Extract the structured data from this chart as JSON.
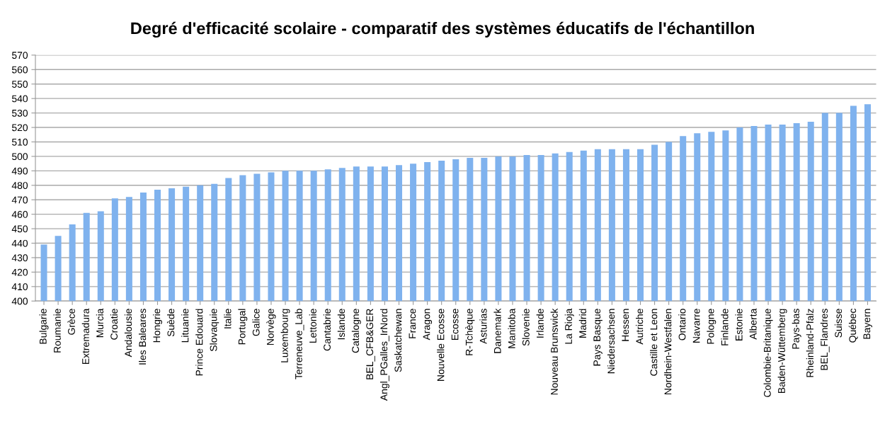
{
  "chart_data": {
    "type": "bar",
    "title": "Degré d'efficacité scolaire - comparatif des systèmes éducatifs de l'échantillon",
    "categories": [
      "Bulgarie",
      "Roumanie",
      "Grèce",
      "Extremadura",
      "Murcia",
      "Croatie",
      "Andalousie",
      "Iles Baleares",
      "Hongrie",
      "Suède",
      "Lituanie",
      "Prince Edouard",
      "Slovaquie",
      "Italie",
      "Portugal",
      "Galice",
      "Norvège",
      "Luxembourg",
      "Terreneuve_Lab",
      "Lettonie",
      "Cantabrie",
      "Islande",
      "Catalogne",
      "BEL_CFB&GER",
      "Angl_PGalles_IrNord",
      "Saskatchewan",
      "France",
      "Aragon",
      "Nouvelle Ecosse",
      "Ecosse",
      "R-Tchèque",
      "Asturias",
      "Danemark",
      "Manitoba",
      "Slovenie",
      "Irlande",
      "Nouveau Brunswick",
      "La Rioja",
      "Madrid",
      "Pays Basque",
      "Niedersachsen",
      "Hessen",
      "Autriche",
      "Castille et Leon",
      "Nordhein-Westfalen",
      "Ontario",
      "Navarre",
      "Pologne",
      "Finlande",
      "Estonie",
      "Alberta",
      "Colombie-Britanique",
      "Baden-Wüttemberg",
      "Pays-bas",
      "Rheinland-Pfalz",
      "BEL_Flandres",
      "Suisse",
      "Québec",
      "Bayern"
    ],
    "values": [
      439,
      445,
      453,
      461,
      462,
      471,
      472,
      475,
      477,
      478,
      479,
      480,
      481,
      485,
      487,
      488,
      489,
      490,
      490,
      490,
      491,
      492,
      493,
      493,
      493,
      494,
      495,
      496,
      497,
      498,
      499,
      499,
      500,
      500,
      501,
      501,
      502,
      503,
      504,
      505,
      505,
      505,
      505,
      508,
      510,
      514,
      516,
      517,
      518,
      520,
      521,
      522,
      522,
      523,
      524,
      530,
      530,
      535,
      536
    ],
    "color": "#7fb2ee",
    "ylim": [
      400,
      570
    ],
    "yticks": [
      400,
      410,
      420,
      430,
      440,
      450,
      460,
      470,
      480,
      490,
      500,
      510,
      520,
      530,
      540,
      550,
      560,
      570
    ],
    "grid": "y"
  }
}
